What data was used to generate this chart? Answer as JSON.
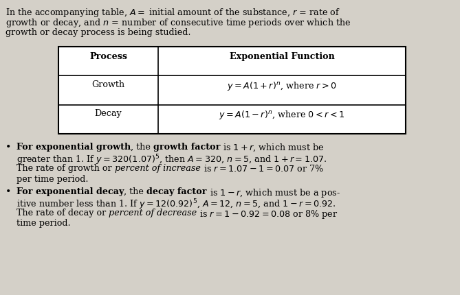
{
  "bg_color": "#d4d0c8",
  "font_size": 9.2,
  "fig_width": 6.69,
  "fig_height": 4.3,
  "dpi": 100,
  "intro_lines": [
    "In the accompanying table, $A=$ initial amount of the substance, $r$ = rate of",
    "growth or decay, and $n$ = number of consecutive time periods over which the",
    "growth or decay process is being studied."
  ],
  "table_header_col1": "Process",
  "table_header_col2": "Exponential Function",
  "table_row1_col1": "Growth",
  "table_row1_col2": "$y = A(1 + r)^n$, where $r > 0$",
  "table_row2_col1": "Decay",
  "table_row2_col2": "$y = A(1 - r)^n$, where $0 < r < 1$"
}
